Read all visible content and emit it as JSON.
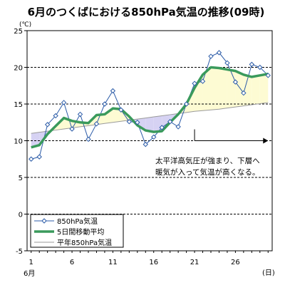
{
  "chart_data": {
    "type": "line",
    "title": "6月のつくばにおける850hPa気温の推移(09時)",
    "y_unit": "(℃)",
    "x_unit": "(日)",
    "x_month_label": "6月",
    "xlim": [
      1,
      30
    ],
    "ylim": [
      -5,
      25
    ],
    "x_ticks": [
      1,
      6,
      11,
      16,
      21,
      26
    ],
    "y_ticks": [
      -5,
      0,
      5,
      10,
      15,
      20,
      25
    ],
    "grid": "horizontal dashed",
    "legend_position": "bottom-left",
    "x": [
      1,
      2,
      3,
      4,
      5,
      6,
      7,
      8,
      9,
      10,
      11,
      12,
      13,
      14,
      15,
      16,
      17,
      18,
      19,
      20,
      21,
      22,
      23,
      24,
      25,
      26,
      27,
      28,
      29,
      30
    ],
    "series": [
      {
        "name": "850hPa気温",
        "color": "#2c5ca8",
        "marker": "diamond",
        "values": [
          7.5,
          7.8,
          12.2,
          13.4,
          15.2,
          11.6,
          13.6,
          10.2,
          12.3,
          15.0,
          16.8,
          14.2,
          12.6,
          12.5,
          9.5,
          10.5,
          11.8,
          12.6,
          11.9,
          15.0,
          17.8,
          18.1,
          21.5,
          22.0,
          20.6,
          18.0,
          16.5,
          20.4,
          20.0,
          18.9
        ]
      },
      {
        "name": "5日間移動平均",
        "color": "#3a9a5c",
        "values": [
          9.1,
          9.4,
          10.9,
          12.0,
          13.1,
          12.7,
          12.5,
          12.4,
          13.5,
          13.6,
          14.4,
          14.3,
          13.3,
          12.1,
          11.4,
          11.2,
          11.3,
          12.5,
          13.6,
          15.0,
          17.2,
          19.0,
          20.0,
          19.9,
          19.7,
          19.5,
          19.0,
          18.7,
          18.9,
          19.1
        ]
      },
      {
        "name": "平年850hPa気温",
        "color": "#9a9a9a",
        "values": [
          11.0,
          11.15,
          11.3,
          11.45,
          11.6,
          11.75,
          11.9,
          12.05,
          12.2,
          12.35,
          12.5,
          12.65,
          12.8,
          12.95,
          13.1,
          13.25,
          13.4,
          13.55,
          13.7,
          13.85,
          14.0,
          14.1,
          14.2,
          14.3,
          14.45,
          14.6,
          14.75,
          14.9,
          15.05,
          15.2
        ]
      }
    ],
    "fills": {
      "above_normal_color": "#fdfbd3",
      "below_normal_color": "#d6d2f3"
    },
    "annotation": {
      "lines": [
        "太平洋高気圧が強まり、下層へ",
        "暖気が入って気温が高くなる。"
      ],
      "arrow_from_day": 21,
      "arrow_to_day": 30,
      "arrow_y": 10
    }
  }
}
